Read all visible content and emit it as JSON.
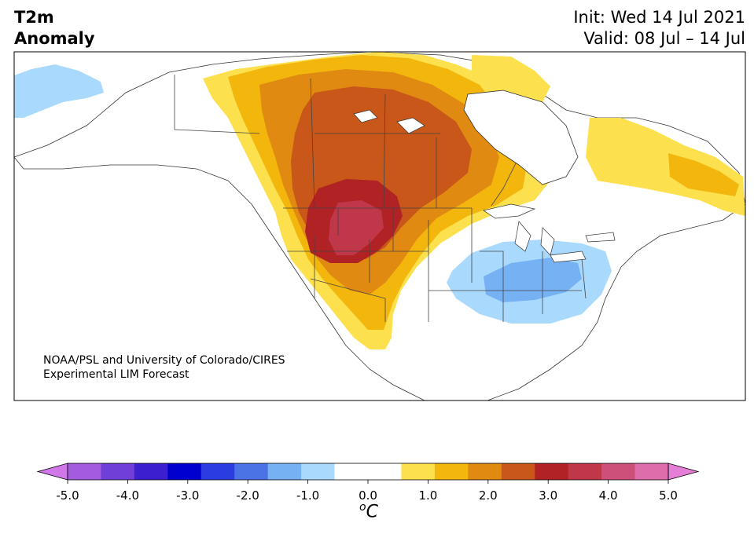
{
  "header": {
    "title_line1": "T2m",
    "title_line2": "Anomaly",
    "init": "Init: Wed 14 Jul 2021",
    "valid": "Valid: 08 Jul – 14 Jul"
  },
  "credit": {
    "line1": "NOAA/PSL and University of Colorado/CIRES",
    "line2": "Experimental LIM Forecast"
  },
  "colorbar": {
    "tick_labels": [
      "-5.0",
      "-4.0",
      "-3.0",
      "-2.0",
      "-1.0",
      "0.0",
      "1.0",
      "2.0",
      "3.0",
      "4.0",
      "5.0"
    ],
    "unit_sup": "o",
    "unit": "C",
    "colors": [
      "#d078e8",
      "#a45be0",
      "#6f3fd8",
      "#3c20d0",
      "#0000cf",
      "#2a3de0",
      "#4b73e6",
      "#76b1f4",
      "#a9d9fc",
      "#ffffff",
      "#ffffff",
      "#fde04d",
      "#f2b60d",
      "#e08a12",
      "#c85719",
      "#b12225",
      "#bf3749",
      "#cc5079",
      "#dd6dab",
      "#e47ed6"
    ],
    "min": -5.0,
    "max": 5.0,
    "step": 0.5
  },
  "map_colors": {
    "ocean": "#ffffff",
    "land": "#ffffff",
    "warm_1": "#fde04d",
    "warm_2": "#f2b60d",
    "warm_3": "#e08a12",
    "warm_4": "#c85719",
    "warm_5": "#b12225",
    "warm_6": "#bf3749",
    "cool_1": "#a9d9fc",
    "cool_2": "#76b1f4"
  }
}
